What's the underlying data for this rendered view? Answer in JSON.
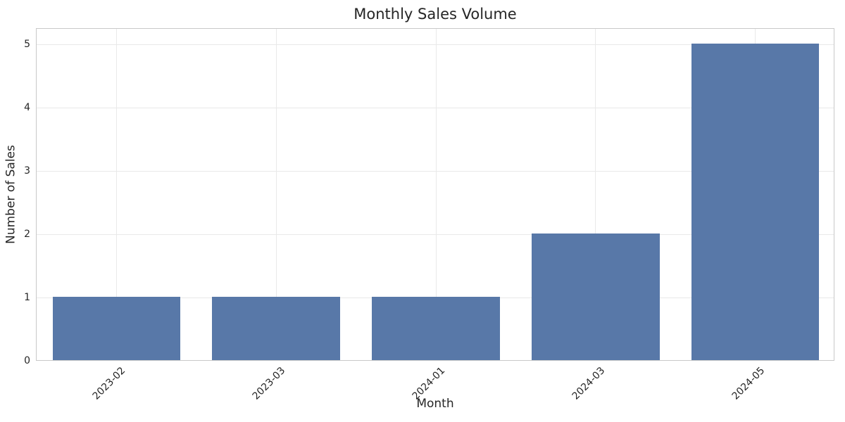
{
  "chart_data": {
    "type": "bar",
    "title": "Monthly Sales Volume",
    "xlabel": "Month",
    "ylabel": "Number of Sales",
    "categories": [
      "2023-02",
      "2023-03",
      "2024-01",
      "2024-03",
      "2024-05"
    ],
    "values": [
      1,
      1,
      1,
      2,
      5
    ],
    "yticks": [
      0,
      1,
      2,
      3,
      4,
      5
    ],
    "ylim": [
      0,
      5.25
    ],
    "grid": true,
    "legend": "none",
    "xtick_rotation_deg": 45,
    "bar_width_fraction": 0.8,
    "colors": {
      "bar": "#5878a8",
      "grid": "#e9e9e9",
      "spine": "#c9c9c9",
      "text": "#262626",
      "background": "#ffffff"
    }
  }
}
